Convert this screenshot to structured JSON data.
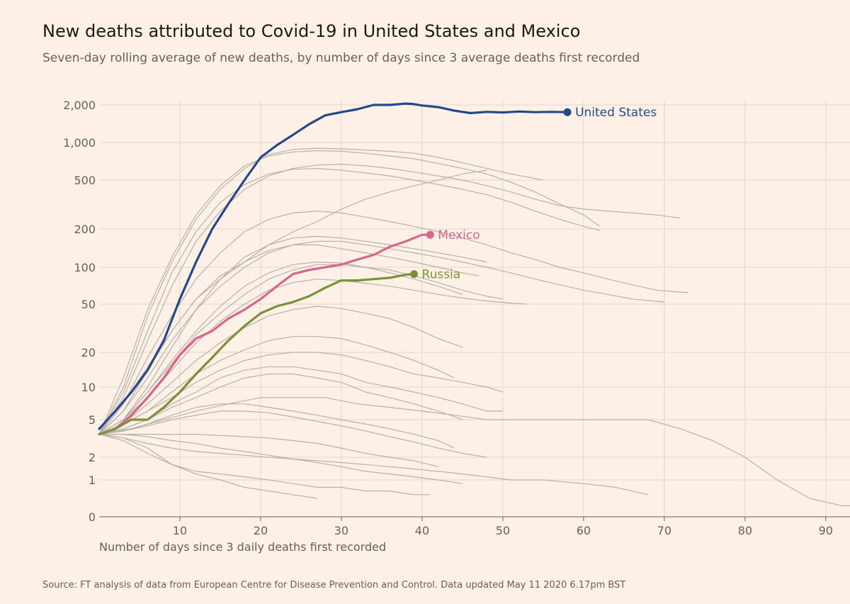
{
  "chart": {
    "title": "New deaths attributed to Covid-19 in United States and Mexico",
    "subtitle": "Seven-day rolling average of new deaths, by number of days since 3 average deaths first recorded",
    "source": "Source: FT analysis of data from European Centre for Disease Prevention and Control. Data updated May 11 2020 6.17pm BST"
  },
  "colors": {
    "background": "#fdf1e6",
    "grid": "#e3d8cd",
    "axis": "#66605c",
    "background_lines": "#b8b0aa",
    "United States": "#24498b",
    "Mexico": "#d7648c",
    "Russia": "#7a913a"
  },
  "chart_data": {
    "type": "line",
    "title": "New deaths attributed to Covid-19 in United States and Mexico",
    "subtitle": "Seven-day rolling average of new deaths, by number of days since 3 average deaths first recorded",
    "xlabel": "Number of days since 3 daily deaths first recorded",
    "ylabel": "",
    "yscale": "log",
    "xlim": [
      0,
      93
    ],
    "ylim": [
      0,
      2000
    ],
    "x_ticks": [
      10,
      20,
      30,
      40,
      50,
      60,
      70,
      80,
      90
    ],
    "y_ticks": [
      0,
      1,
      2,
      5,
      10,
      20,
      50,
      100,
      200,
      500,
      1000,
      2000
    ],
    "y_tick_labels": [
      "0",
      "1",
      "2",
      "5",
      "10",
      "20",
      "50",
      "100",
      "200",
      "500",
      "1,000",
      "2,000"
    ],
    "grid": true,
    "highlighted_series": [
      {
        "name": "United States",
        "x": [
          0,
          2,
          4,
          6,
          8,
          10,
          12,
          14,
          16,
          18,
          20,
          22,
          24,
          26,
          28,
          30,
          32,
          34,
          36,
          38,
          39,
          40,
          42,
          44,
          46,
          48,
          50,
          52,
          54,
          56,
          58
        ],
        "values": [
          4,
          6,
          9,
          14,
          25,
          55,
          110,
          200,
          320,
          500,
          760,
          950,
          1150,
          1400,
          1650,
          1750,
          1850,
          2000,
          2000,
          2050,
          2030,
          1980,
          1920,
          1800,
          1720,
          1760,
          1740,
          1770,
          1750,
          1760,
          1750
        ]
      },
      {
        "name": "Mexico",
        "x": [
          0,
          2,
          4,
          6,
          8,
          10,
          12,
          14,
          16,
          18,
          20,
          22,
          24,
          26,
          28,
          30,
          32,
          34,
          36,
          38,
          40,
          41
        ],
        "values": [
          3.5,
          4,
          5.5,
          8,
          12,
          19,
          26,
          30,
          38,
          45,
          55,
          70,
          88,
          95,
          100,
          105,
          115,
          125,
          145,
          160,
          180,
          180
        ]
      },
      {
        "name": "Russia",
        "x": [
          0,
          2,
          4,
          6,
          8,
          10,
          12,
          14,
          16,
          18,
          20,
          22,
          24,
          26,
          28,
          30,
          32,
          34,
          36,
          38,
          39
        ],
        "values": [
          3.5,
          4,
          5,
          5,
          6.5,
          9,
          13,
          18,
          25,
          33,
          42,
          48,
          52,
          58,
          68,
          78,
          78,
          80,
          82,
          87,
          88
        ]
      }
    ],
    "background_series": [
      {
        "x": [
          0,
          3,
          6,
          9,
          12,
          15,
          18,
          21,
          24,
          27,
          30,
          33,
          36,
          39,
          42,
          45,
          48,
          51,
          55
        ],
        "values": [
          3.5,
          10,
          40,
          110,
          240,
          420,
          620,
          800,
          880,
          900,
          890,
          870,
          850,
          820,
          760,
          690,
          620,
          560,
          500
        ]
      },
      {
        "x": [
          0,
          3,
          6,
          9,
          12,
          15,
          18,
          21,
          24,
          27,
          30,
          33,
          36,
          39,
          42,
          45,
          48,
          51,
          54,
          57,
          60,
          62
        ],
        "values": [
          3.5,
          12,
          45,
          120,
          260,
          450,
          650,
          780,
          840,
          860,
          850,
          820,
          780,
          740,
          680,
          620,
          560,
          480,
          400,
          320,
          260,
          210
        ]
      },
      {
        "x": [
          0,
          3,
          6,
          9,
          12,
          15,
          18,
          21,
          24,
          27,
          30,
          33,
          36,
          39,
          42,
          45,
          48,
          51,
          54,
          57,
          60,
          63,
          66,
          69,
          72
        ],
        "values": [
          3.5,
          8,
          25,
          70,
          160,
          280,
          420,
          540,
          620,
          660,
          670,
          650,
          620,
          580,
          540,
          500,
          450,
          400,
          350,
          310,
          290,
          280,
          270,
          260,
          245
        ]
      },
      {
        "x": [
          0,
          3,
          6,
          9,
          12,
          15,
          18,
          21,
          24,
          27,
          30,
          33,
          36,
          39,
          42,
          45,
          48,
          51,
          54,
          57,
          60,
          62
        ],
        "values": [
          3.5,
          9,
          30,
          90,
          190,
          330,
          460,
          560,
          610,
          620,
          600,
          570,
          540,
          500,
          460,
          420,
          380,
          330,
          280,
          240,
          210,
          195
        ]
      },
      {
        "x": [
          0,
          3,
          6,
          9,
          12,
          15,
          18,
          21,
          24,
          27,
          30,
          33,
          36,
          39,
          42,
          45,
          48
        ],
        "values": [
          3.5,
          7,
          15,
          30,
          55,
          80,
          110,
          150,
          190,
          230,
          290,
          350,
          400,
          450,
          500,
          560,
          600
        ]
      },
      {
        "x": [
          0,
          3,
          6,
          9,
          12,
          15,
          18,
          21,
          24,
          27,
          30,
          33,
          36,
          39,
          42,
          45,
          48,
          51,
          54,
          57,
          60,
          63,
          66,
          69,
          73
        ],
        "values": [
          3.5,
          7,
          18,
          40,
          80,
          130,
          190,
          240,
          270,
          280,
          270,
          250,
          230,
          210,
          190,
          170,
          150,
          130,
          115,
          100,
          90,
          80,
          72,
          65,
          62
        ]
      },
      {
        "x": [
          0,
          3,
          6,
          9,
          12,
          15,
          18,
          21,
          24,
          27,
          30,
          33,
          36,
          39,
          42,
          45,
          48,
          51,
          54,
          57,
          60,
          63,
          66,
          70
        ],
        "values": [
          3.5,
          6,
          12,
          25,
          45,
          70,
          100,
          130,
          150,
          160,
          160,
          150,
          140,
          130,
          120,
          110,
          100,
          90,
          80,
          72,
          65,
          60,
          55,
          52
        ]
      },
      {
        "x": [
          0,
          3,
          6,
          9,
          12,
          15,
          18,
          21,
          24,
          27,
          30,
          33,
          36,
          39,
          42,
          45,
          47
        ],
        "values": [
          3.5,
          6,
          14,
          30,
          55,
          85,
          110,
          135,
          150,
          150,
          140,
          130,
          120,
          110,
          100,
          90,
          85
        ]
      },
      {
        "x": [
          0,
          3,
          6,
          9,
          12,
          15,
          18,
          21,
          24,
          27,
          30,
          33,
          36,
          39,
          42,
          45,
          48,
          50
        ],
        "values": [
          3.5,
          5,
          9,
          16,
          28,
          42,
          60,
          80,
          95,
          105,
          105,
          100,
          95,
          85,
          75,
          65,
          58,
          55
        ]
      },
      {
        "x": [
          0,
          3,
          6,
          9,
          12,
          15,
          18,
          21,
          24,
          27,
          30,
          33,
          36,
          39,
          42,
          45,
          48,
          51,
          53
        ],
        "values": [
          3.5,
          5,
          8,
          14,
          24,
          36,
          50,
          65,
          75,
          80,
          78,
          74,
          70,
          65,
          60,
          56,
          53,
          51,
          50
        ]
      },
      {
        "x": [
          0,
          3,
          6,
          9,
          12,
          15,
          18,
          21,
          24,
          27,
          30,
          33,
          36,
          39,
          42,
          45,
          48
        ],
        "values": [
          3.5,
          5,
          10,
          22,
          45,
          80,
          120,
          150,
          170,
          175,
          170,
          160,
          150,
          140,
          130,
          120,
          110
        ]
      },
      {
        "x": [
          0,
          3,
          6,
          9,
          12,
          15,
          18,
          21,
          24,
          27,
          30,
          33,
          36,
          39,
          42,
          45
        ],
        "values": [
          3.5,
          5,
          9,
          17,
          30,
          48,
          70,
          90,
          105,
          110,
          108,
          100,
          90,
          80,
          70,
          60
        ]
      },
      {
        "x": [
          0,
          3,
          6,
          9,
          12,
          15,
          18,
          21,
          24,
          27,
          30,
          33,
          36,
          39,
          42,
          45
        ],
        "values": [
          3.5,
          4.5,
          7,
          11,
          17,
          24,
          32,
          40,
          45,
          48,
          46,
          42,
          38,
          32,
          26,
          22
        ]
      },
      {
        "x": [
          0,
          3,
          6,
          9,
          12,
          15,
          18,
          21,
          24,
          27,
          30,
          33,
          36,
          39,
          42,
          44
        ],
        "values": [
          3.5,
          4.5,
          6,
          9,
          13,
          17,
          21,
          25,
          27,
          27,
          26,
          23,
          20,
          17,
          14,
          12
        ]
      },
      {
        "x": [
          0,
          3,
          6,
          9,
          12,
          15,
          18,
          21,
          24,
          27,
          30,
          33,
          36,
          39,
          42,
          45,
          48,
          50
        ],
        "values": [
          3.5,
          4.5,
          6,
          8,
          11,
          14,
          17,
          19,
          20,
          20,
          19,
          17,
          15,
          13,
          12,
          11,
          10,
          9
        ]
      },
      {
        "x": [
          0,
          3,
          6,
          9,
          12,
          15,
          18,
          21,
          24,
          27,
          30,
          33,
          36,
          39,
          42,
          45
        ],
        "values": [
          3.5,
          4,
          5,
          6.5,
          8,
          10,
          12,
          13,
          13,
          12,
          11,
          9,
          8,
          7,
          6,
          5
        ]
      },
      {
        "x": [
          0,
          4,
          8,
          12,
          16,
          20,
          24,
          28,
          32,
          36,
          40,
          44,
          48,
          52,
          56,
          60,
          64,
          68,
          72,
          76,
          80,
          84,
          88,
          92,
          93
        ],
        "values": [
          3.5,
          4,
          5,
          6,
          7,
          8,
          8,
          8,
          7,
          6.5,
          6,
          5.5,
          5,
          5,
          5,
          5,
          5,
          5,
          4,
          3,
          2,
          1,
          0.5,
          0.3,
          0.3
        ]
      },
      {
        "x": [
          0,
          3,
          6,
          9,
          12,
          15,
          18,
          21,
          24,
          27,
          30,
          33,
          36,
          39,
          42,
          44
        ],
        "values": [
          3.5,
          3.8,
          4.5,
          5.5,
          6.5,
          7,
          7,
          6.5,
          6,
          5.5,
          5,
          4.5,
          4,
          3.5,
          3,
          2.5
        ]
      },
      {
        "x": [
          0,
          3,
          6,
          9,
          12,
          15,
          18,
          21,
          24,
          27,
          30,
          33,
          36,
          39,
          42
        ],
        "values": [
          3.5,
          3.5,
          3.5,
          3.5,
          3.5,
          3.4,
          3.3,
          3.2,
          3,
          2.8,
          2.5,
          2.2,
          2,
          1.8,
          1.5
        ]
      },
      {
        "x": [
          0,
          3,
          6,
          9,
          12,
          15,
          18,
          21,
          24,
          27,
          30,
          33,
          36,
          39,
          42,
          45,
          48,
          51,
          55,
          60,
          64,
          68
        ],
        "values": [
          3.5,
          3.2,
          2.8,
          2.5,
          2.3,
          2.2,
          2.1,
          2,
          1.9,
          1.8,
          1.7,
          1.6,
          1.5,
          1.4,
          1.3,
          1.2,
          1.1,
          1,
          1,
          0.9,
          0.8,
          0.6
        ]
      },
      {
        "x": [
          0,
          3,
          6,
          9,
          12,
          15,
          18,
          21,
          24,
          27,
          30,
          33,
          36,
          39,
          41
        ],
        "values": [
          3.5,
          3,
          2.2,
          1.6,
          1.3,
          1.2,
          1.1,
          1,
          0.9,
          0.8,
          0.8,
          0.7,
          0.7,
          0.6,
          0.6
        ]
      },
      {
        "x": [
          0,
          3,
          6,
          9,
          12,
          15,
          18,
          21,
          24,
          27,
          30,
          33,
          36,
          39,
          42,
          45,
          48
        ],
        "values": [
          3.5,
          3.8,
          4.3,
          5,
          5.5,
          6,
          6,
          5.8,
          5.3,
          4.8,
          4.3,
          3.8,
          3.3,
          2.9,
          2.5,
          2.2,
          2
        ]
      },
      {
        "x": [
          0,
          3,
          6,
          9,
          12,
          15,
          18,
          21,
          24,
          27,
          30,
          33,
          36,
          39,
          42,
          45,
          48,
          50
        ],
        "values": [
          3.5,
          4,
          5,
          7,
          9,
          12,
          14,
          15,
          15,
          14,
          13,
          11,
          10,
          9,
          8,
          7,
          6,
          6
        ]
      },
      {
        "x": [
          0,
          3,
          6,
          9,
          12,
          15,
          18,
          21,
          24,
          27,
          30,
          33,
          36,
          39,
          42,
          45
        ],
        "values": [
          3.5,
          3.5,
          3.3,
          3,
          2.8,
          2.5,
          2.3,
          2.1,
          1.9,
          1.7,
          1.5,
          1.3,
          1.2,
          1.1,
          1,
          0.9
        ]
      },
      {
        "x": [
          0,
          3,
          6,
          9,
          12,
          15,
          18,
          21,
          24,
          27
        ],
        "values": [
          3.5,
          3.2,
          2.5,
          1.6,
          1.2,
          1,
          0.8,
          0.7,
          0.6,
          0.5
        ]
      }
    ],
    "series_labels": [
      "United States",
      "Mexico",
      "Russia"
    ]
  }
}
